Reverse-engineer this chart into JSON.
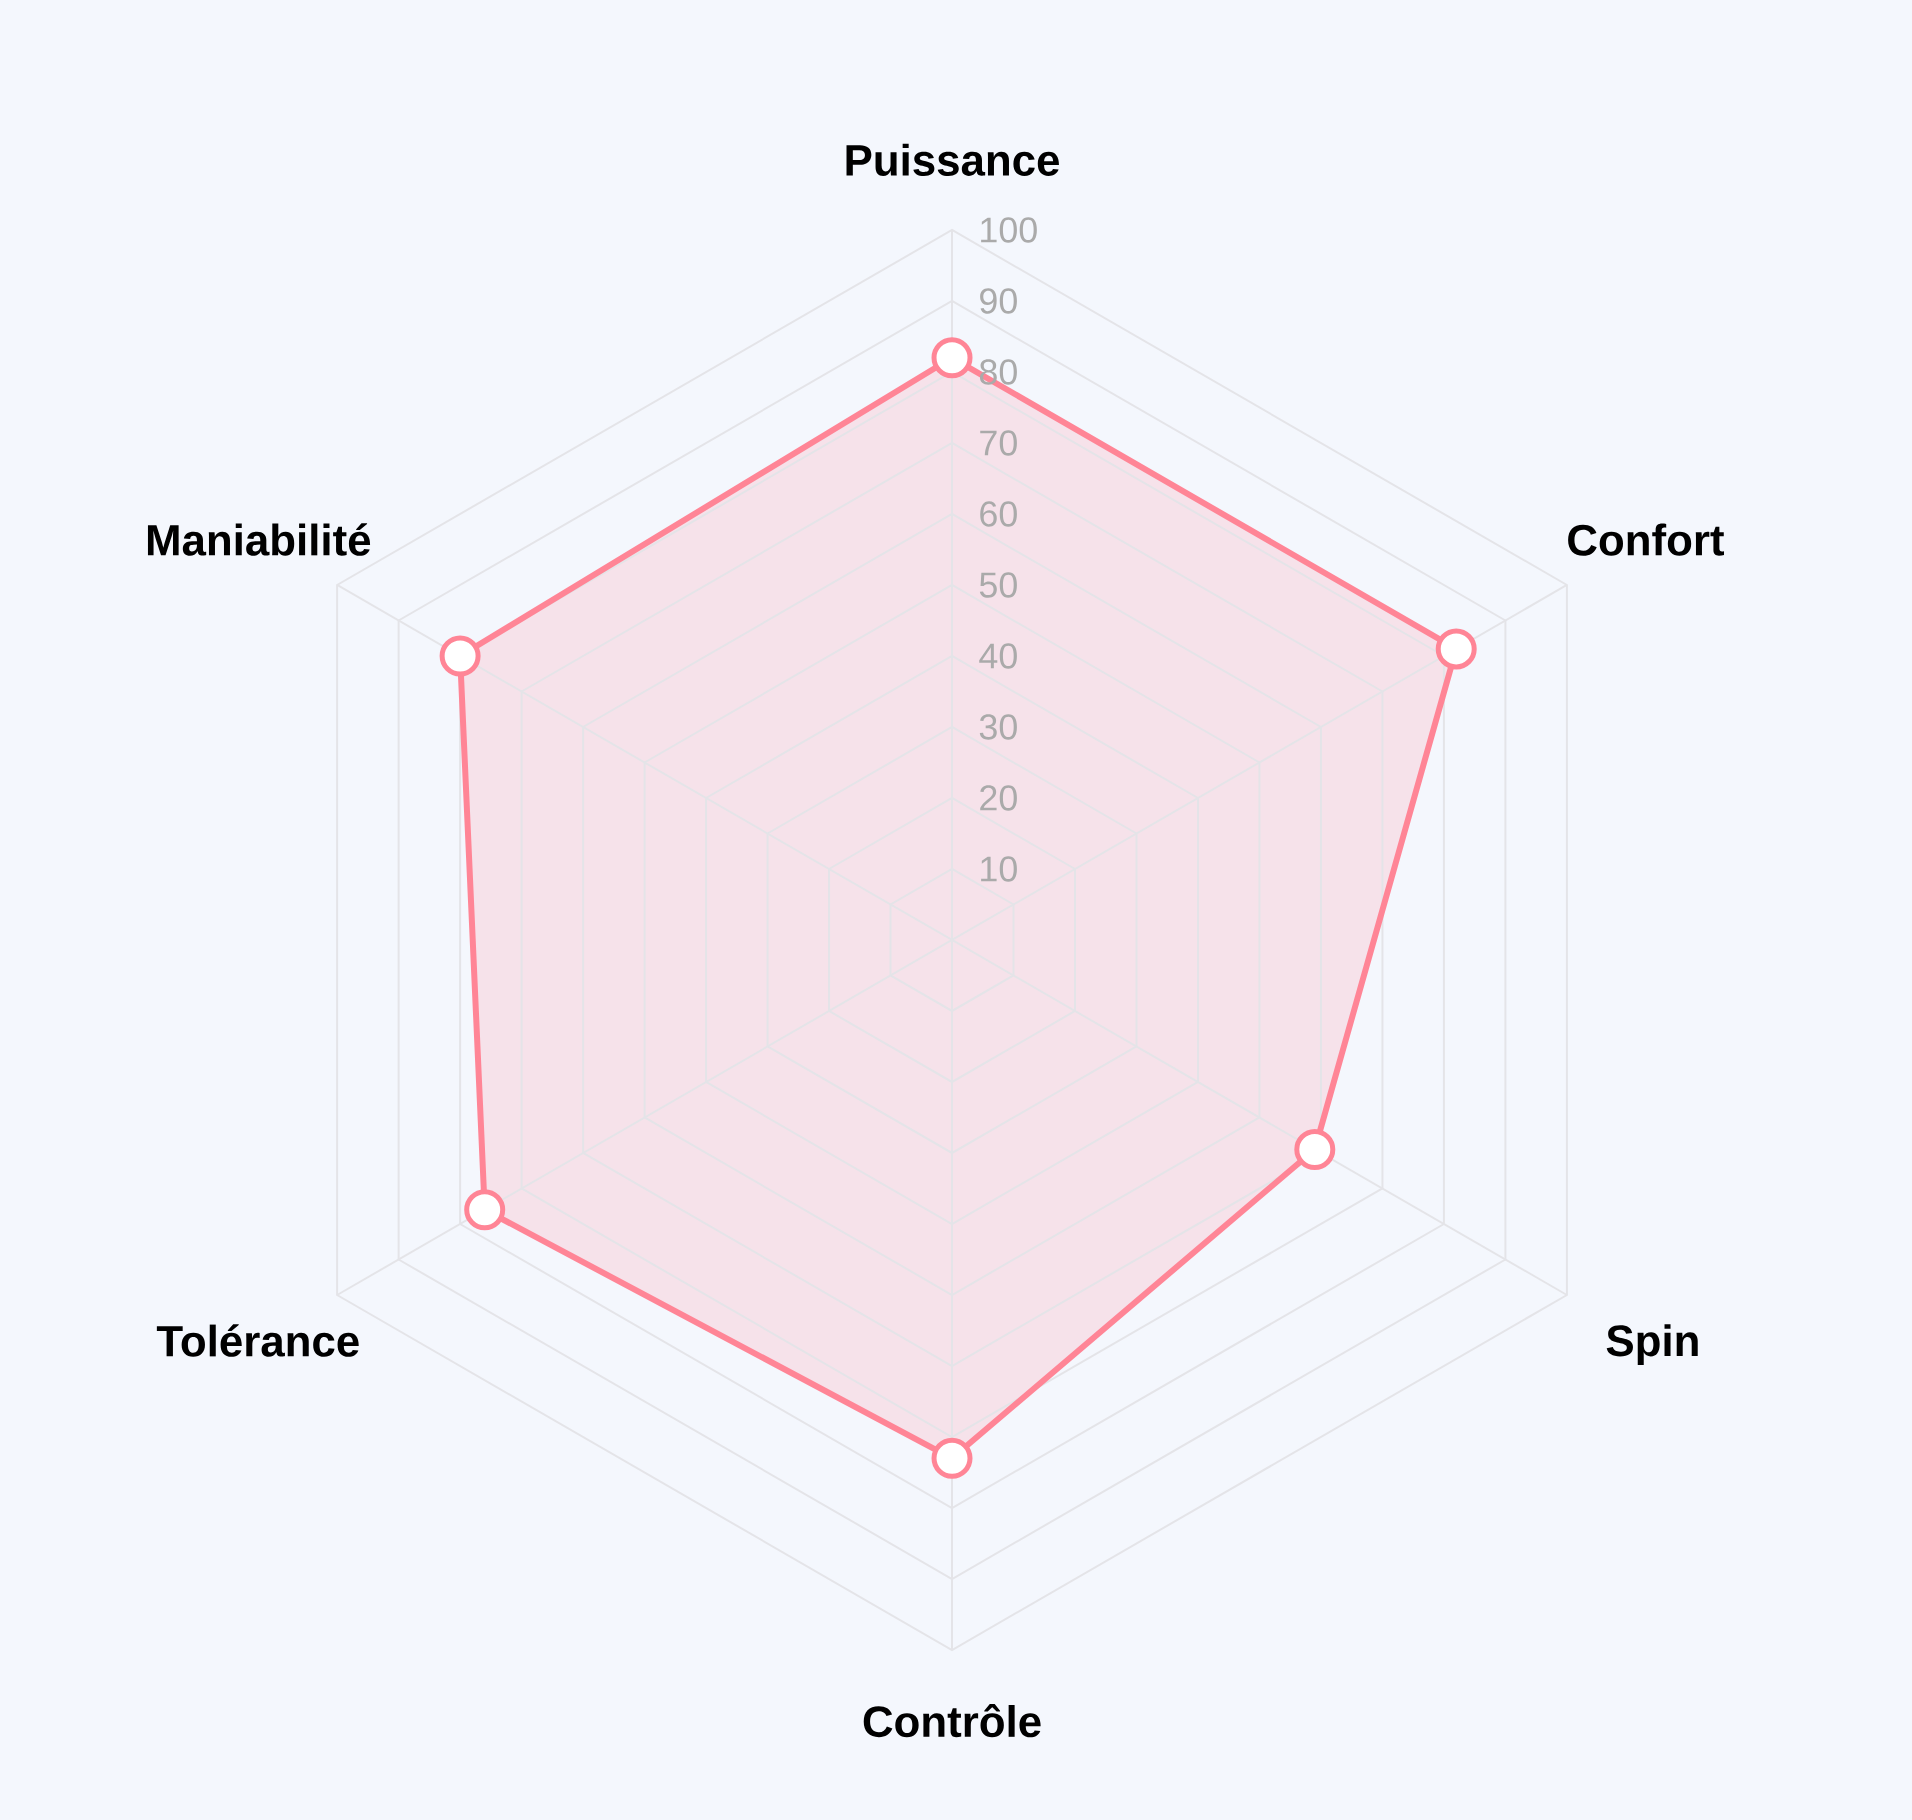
{
  "chart_data": {
    "type": "radar",
    "categories": [
      "Puissance",
      "Confort",
      "Spin",
      "Contrôle",
      "Tolérance",
      "Maniabilité"
    ],
    "series": [
      {
        "color": "#ff8596",
        "values": [
          82,
          82,
          59,
          73,
          76,
          80
        ]
      }
    ],
    "ylim": [
      0,
      100
    ],
    "yticks": [
      10,
      20,
      30,
      40,
      50,
      60,
      70,
      80,
      90,
      100
    ],
    "grid": true,
    "marker": "circle",
    "line_style": "solid"
  }
}
